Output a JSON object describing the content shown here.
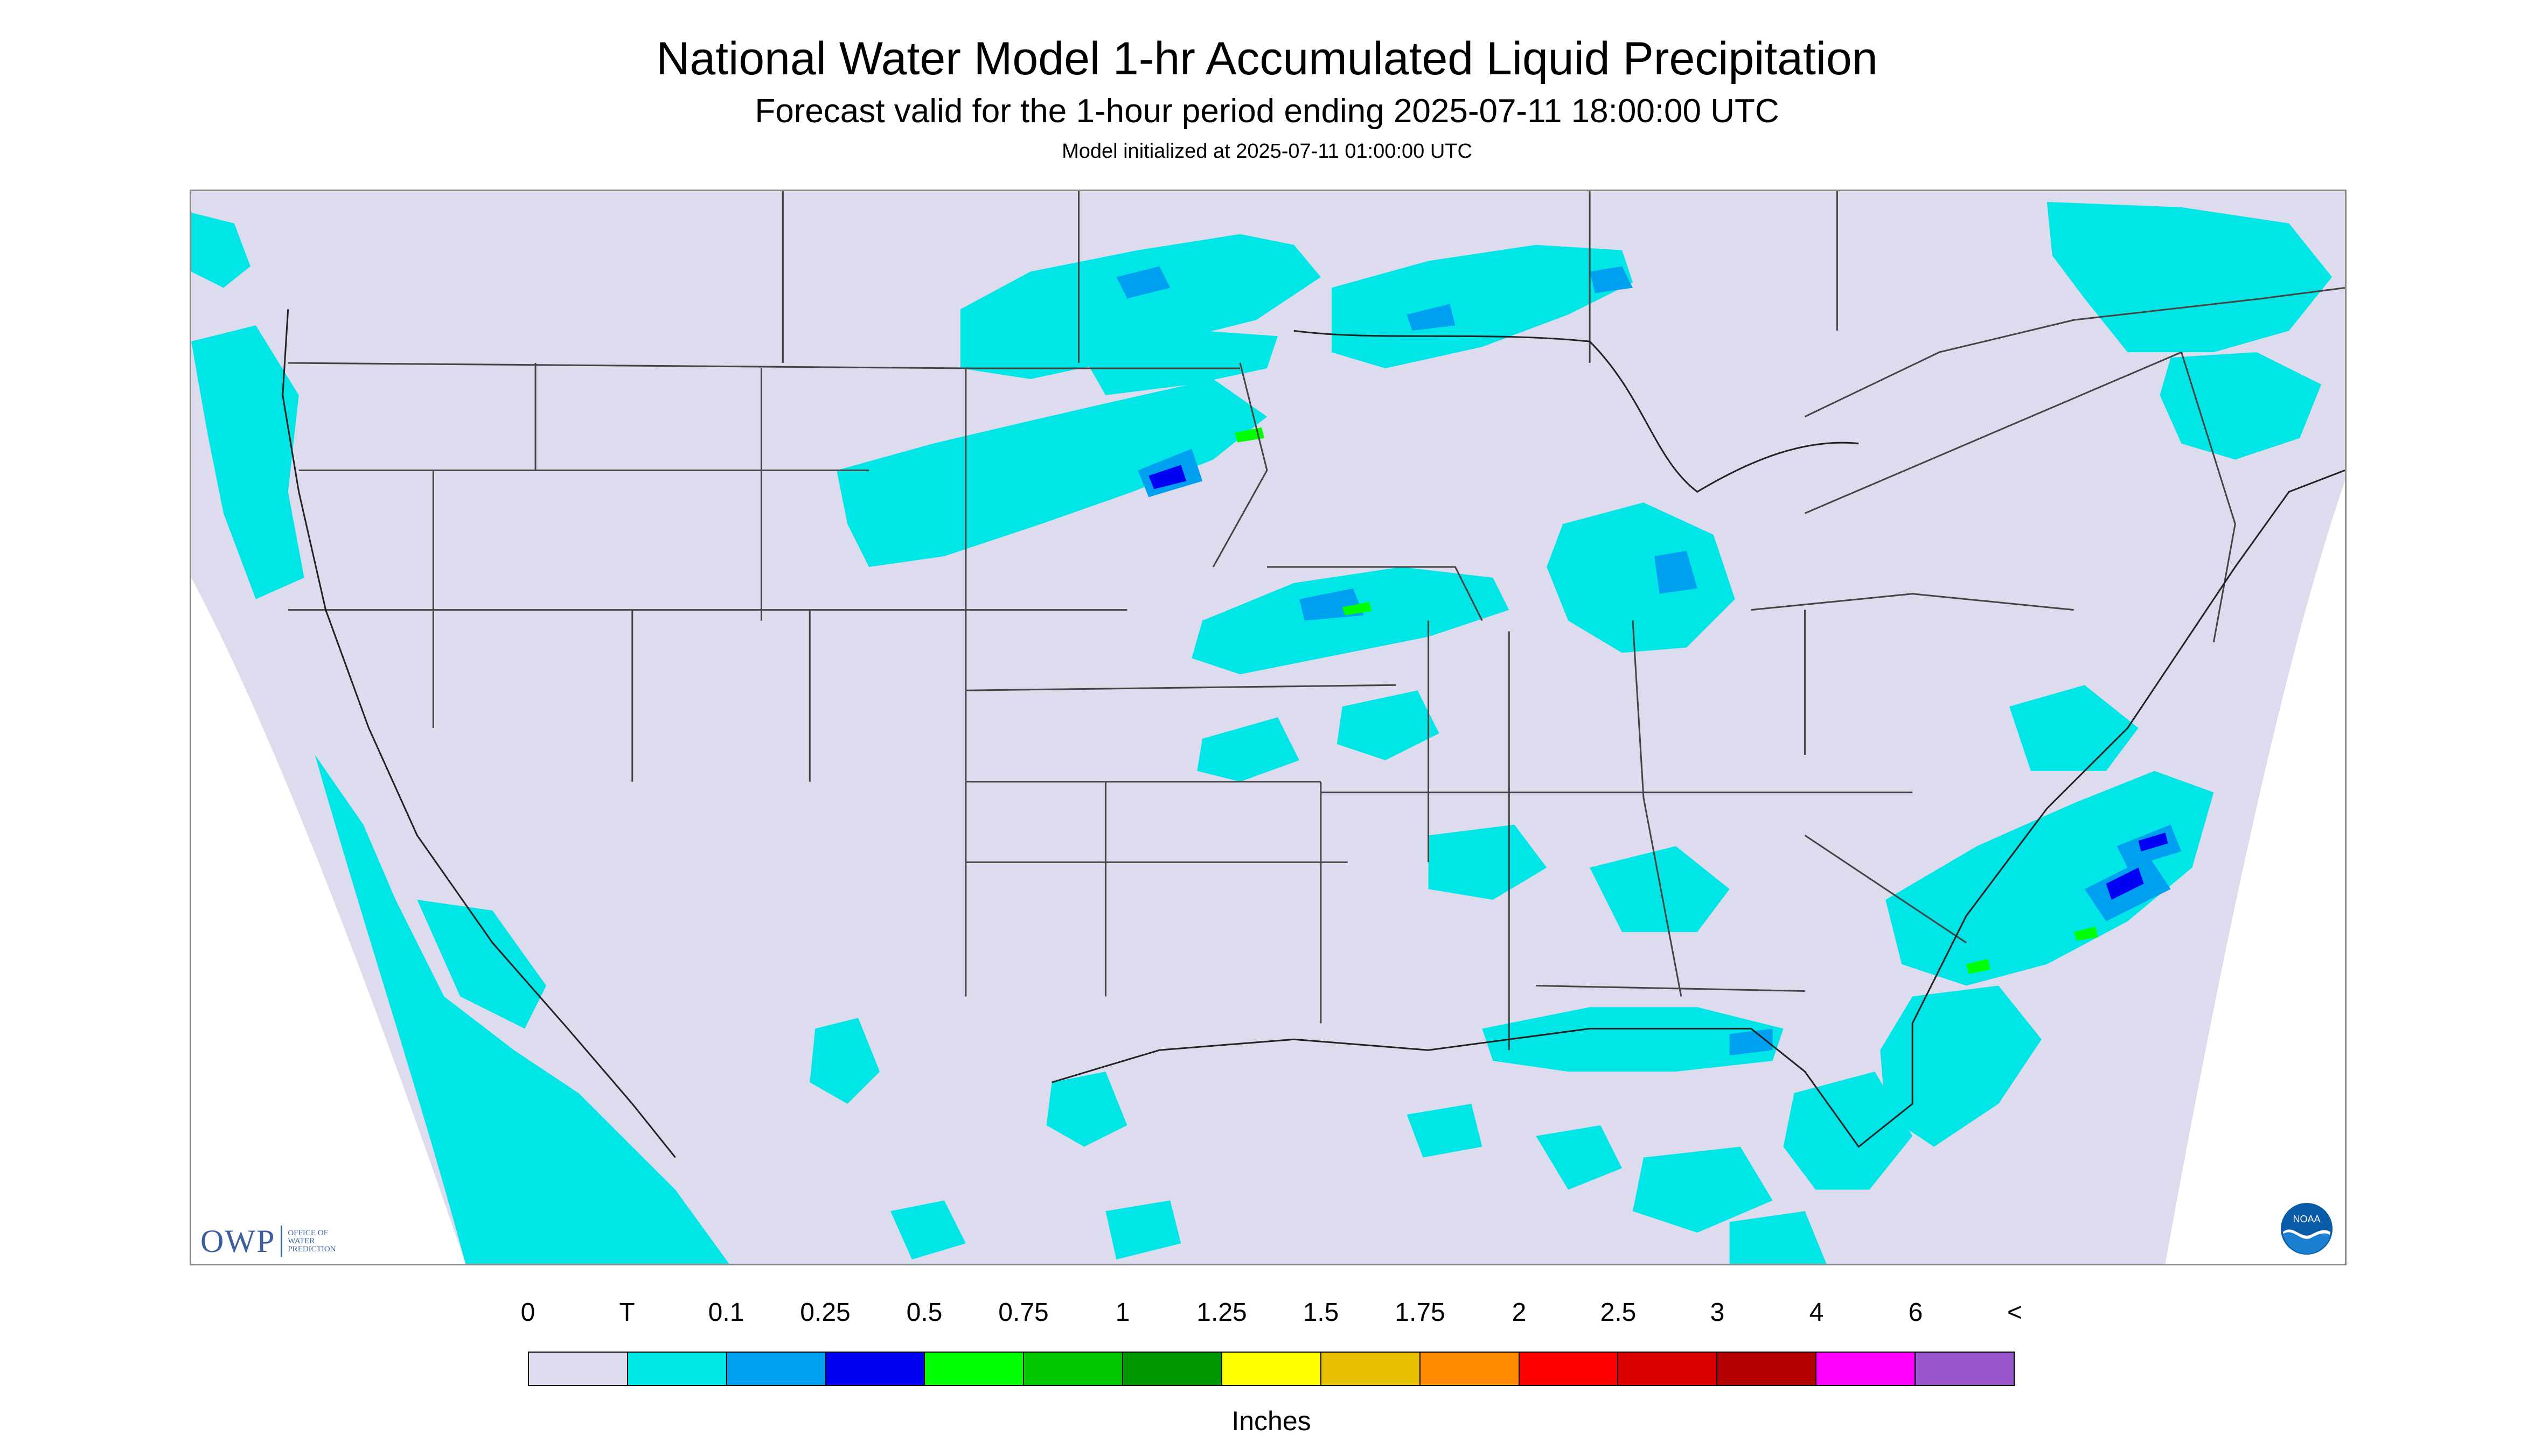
{
  "title": "National Water Model 1-hr Accumulated Liquid Precipitation",
  "subtitle": "Forecast valid for the 1-hour period ending 2025-07-11 18:00:00 UTC",
  "init": "Model initialized at 2025-07-11 01:00:00 UTC",
  "logo": {
    "owp_mark": "OWP",
    "owp_text_1": "OFFICE OF",
    "owp_text_2": "WATER",
    "owp_text_3": "PREDICTION",
    "noaa_text": "NOAA"
  },
  "colors": {
    "domain_fill": "#dcdcee",
    "trace": "#00e6e6",
    "light": "#00a0f0",
    "blue": "#0000f5",
    "green": "#00ff00",
    "state_line": "#444444"
  },
  "legend": {
    "labels": [
      "0",
      "T",
      "0.1",
      "0.25",
      "0.5",
      "0.75",
      "1",
      "1.25",
      "1.5",
      "1.75",
      "2",
      "2.5",
      "3",
      "4",
      "6",
      "<"
    ],
    "colors": [
      "#dcdcee",
      "#00e6e6",
      "#00a0f0",
      "#0000f5",
      "#00ff00",
      "#00c800",
      "#009600",
      "#ffff00",
      "#e6c000",
      "#ff8c00",
      "#ff0000",
      "#dc0000",
      "#b40000",
      "#ff00ff",
      "#9955cc"
    ],
    "units": "Inches"
  }
}
